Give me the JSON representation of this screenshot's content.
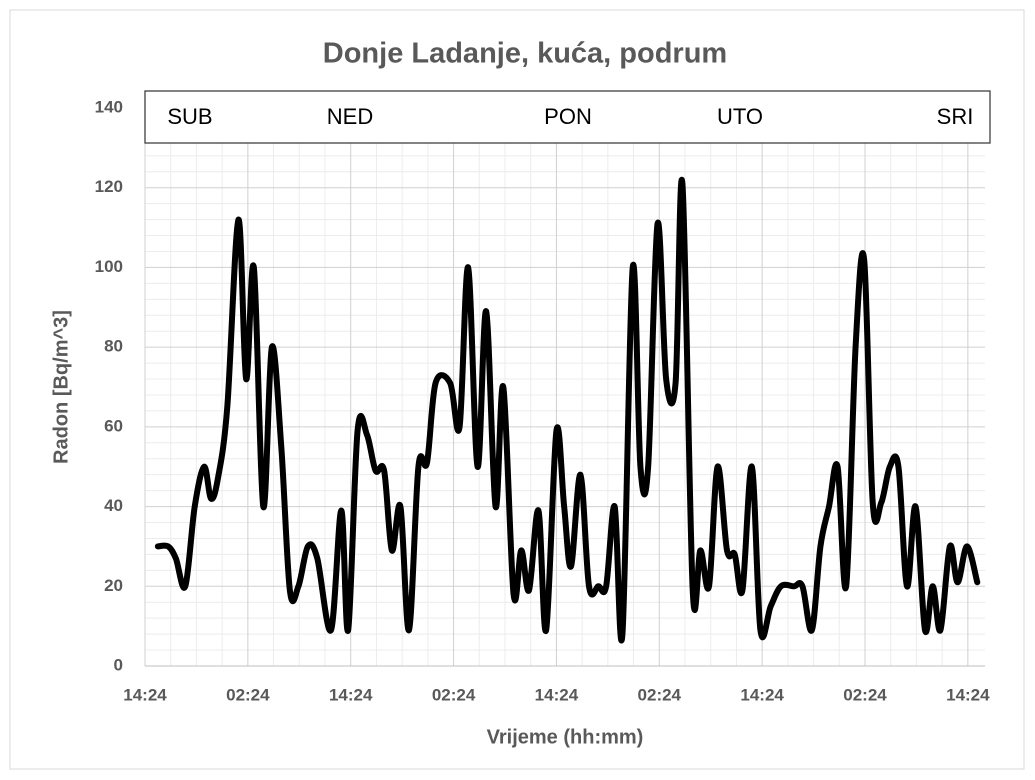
{
  "chart_data": {
    "type": "line",
    "title": "Donje Ladanje, kuća, podrum",
    "xlabel": "Vrijeme (hh:mm)",
    "ylabel": "Radon [Bq/m^3]",
    "annotations": [
      "SUB",
      "NED",
      "PON",
      "UTO",
      "SRI"
    ],
    "xlim": [
      0,
      98
    ],
    "ylim": [
      0,
      140
    ],
    "xticks": [
      {
        "value": 0,
        "label": "14:24"
      },
      {
        "value": 12,
        "label": "02:24"
      },
      {
        "value": 24,
        "label": "14:24"
      },
      {
        "value": 36,
        "label": "02:24"
      },
      {
        "value": 48,
        "label": "14:24"
      },
      {
        "value": 60,
        "label": "02:24"
      },
      {
        "value": 72,
        "label": "14:24"
      },
      {
        "value": 84,
        "label": "02:24"
      },
      {
        "value": 96,
        "label": "14:24"
      }
    ],
    "yticks": [
      0,
      20,
      40,
      60,
      80,
      100,
      120,
      140
    ],
    "grid": true,
    "series": [
      {
        "name": "Radon",
        "color": "#000000",
        "x": [
          1.5,
          2.7,
          3.6,
          4.7,
          5.8,
          6.9,
          7.7,
          8.5,
          9.6,
          10.9,
          11.8,
          12.7,
          13.8,
          14.8,
          15.9,
          16.9,
          17.9,
          19.0,
          20.1,
          21.7,
          22.9,
          23.7,
          24.8,
          25.9,
          26.9,
          27.9,
          28.8,
          29.8,
          30.8,
          31.9,
          32.9,
          33.9,
          35.6,
          36.7,
          37.7,
          38.8,
          39.8,
          40.9,
          41.8,
          43.0,
          43.9,
          44.8,
          45.9,
          46.8,
          48.0,
          48.9,
          49.7,
          50.8,
          51.8,
          52.9,
          53.8,
          54.8,
          55.7,
          56.9,
          57.8,
          58.7,
          59.8,
          60.8,
          61.9,
          62.7,
          63.9,
          64.8,
          65.8,
          66.8,
          67.9,
          68.8,
          69.7,
          70.8,
          71.8,
          73.0,
          74.2,
          75.7,
          76.7,
          77.8,
          78.8,
          79.8,
          80.8,
          81.8,
          82.9,
          83.9,
          84.9,
          85.9,
          86.9,
          87.9,
          88.9,
          89.9,
          91.0,
          91.9,
          92.8,
          93.9,
          94.8,
          95.9,
          97.1
        ],
        "values": [
          30,
          30,
          27,
          20,
          40,
          50,
          42,
          47,
          65,
          112,
          72,
          100,
          40,
          80,
          55,
          19,
          20,
          30,
          27,
          9,
          39,
          9,
          59,
          58,
          49,
          49,
          29,
          40,
          9,
          50,
          51,
          71,
          71,
          60,
          100,
          50,
          89,
          40,
          70,
          18,
          29,
          19,
          39,
          9,
          59,
          40,
          25,
          48,
          20,
          20,
          20,
          40,
          8,
          100,
          50,
          50,
          111,
          72,
          71,
          121,
          19,
          29,
          20,
          50,
          29,
          28,
          19,
          50,
          9,
          15,
          20,
          20,
          20,
          9,
          30,
          40,
          50,
          20,
          80,
          102,
          41,
          41,
          50,
          50,
          20,
          40,
          9,
          20,
          9,
          30,
          21,
          30,
          21
        ]
      }
    ]
  }
}
